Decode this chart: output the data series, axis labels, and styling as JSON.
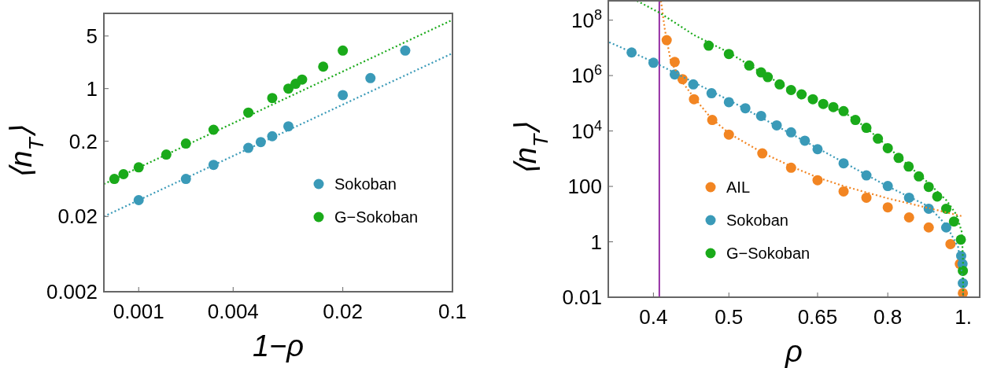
{
  "chart_data": [
    {
      "type": "scatter",
      "xlabel": "1−ρ",
      "ylabel": "⟨n$_{T}$⟩",
      "log": "xy",
      "xlim": [
        0.0006,
        0.1
      ],
      "ylim": [
        0.002,
        10
      ],
      "xticks": [
        0.001,
        0.004,
        0.02,
        0.1
      ],
      "yticks": [
        0.002,
        0.02,
        0.2,
        1,
        5
      ],
      "legend": "right",
      "series": [
        {
          "name": "Sokoban",
          "marker": "circle",
          "color": "#3a9ab8",
          "x": [
            0.001,
            0.002,
            0.003,
            0.005,
            0.006,
            0.0071,
            0.009,
            0.02,
            0.03,
            0.05
          ],
          "values": [
            0.033,
            0.063,
            0.097,
            0.163,
            0.195,
            0.233,
            0.315,
            0.82,
            1.38,
            3.2
          ]
        },
        {
          "name": "G−Sokoban",
          "marker": "circle",
          "color": "#1aaa1a",
          "x": [
            0.0007,
            0.0008,
            0.001,
            0.0015,
            0.002,
            0.003,
            0.005,
            0.0071,
            0.009,
            0.01,
            0.011,
            0.015,
            0.02
          ],
          "values": [
            0.063,
            0.073,
            0.09,
            0.133,
            0.186,
            0.284,
            0.48,
            0.75,
            1,
            1.16,
            1.32,
            1.96,
            3.2
          ]
        },
        {
          "type": "line",
          "line_style": "dotted",
          "color": "#3a9ab8",
          "x": [
            0.0006,
            0.1
          ],
          "values": [
            0.02,
            2.95
          ]
        },
        {
          "type": "line",
          "line_style": "dotted",
          "color": "#1aaa1a",
          "x": [
            0.0006,
            0.1
          ],
          "values": [
            0.054,
            8.2
          ]
        }
      ]
    },
    {
      "type": "scatter",
      "xlabel": "ρ",
      "ylabel": "⟨n$_{T}$⟩",
      "log": "xy",
      "xlim": [
        0.35,
        1.05
      ],
      "ylim": [
        0.01,
        500000000
      ],
      "xticks": [
        0.4,
        0.5,
        0.65,
        0.8,
        {
          "value": 1,
          "label": "1."
        }
      ],
      "yticks": [
        0.01,
        1,
        100,
        {
          "value": 10000,
          "label": "10$^{4}$"
        },
        {
          "value": 1000000,
          "label": "10$^{6}$"
        },
        {
          "value": 100000000,
          "label": "10$^{8}$"
        }
      ],
      "legend": "bottom",
      "ref_lines": [
        {
          "axis": "x",
          "value": 0.407,
          "color": "#8b1a9b"
        }
      ],
      "series": [
        {
          "name": "AIL",
          "marker": "circle",
          "color": "#f28522",
          "x": [
            0.416,
            0.426,
            0.436,
            0.451,
            0.476,
            0.5,
            0.552,
            0.601,
            0.65,
            0.702,
            0.751,
            0.8,
            0.852,
            0.903,
            0.963,
            0.99,
            0.999
          ],
          "values": [
            19000000,
            3100000,
            740000,
            140000,
            25000,
            7400,
            1550,
            470,
            167,
            66,
            39,
            17.6,
            7.6,
            3.3,
            0.83,
            0.16,
            0.014
          ]
        },
        {
          "name": "Sokoban",
          "marker": "circle",
          "color": "#3a9ab8",
          "x": [
            0.375,
            0.4,
            0.426,
            0.45,
            0.475,
            0.5,
            0.525,
            0.55,
            0.576,
            0.601,
            0.626,
            0.65,
            0.702,
            0.751,
            0.8,
            0.852,
            0.903,
            0.951,
            0.994,
            0.998,
            0.999
          ],
          "values": [
            6800000,
            2900000,
            1100000,
            480000,
            230000,
            110000,
            66000,
            35000,
            16000,
            8900,
            4450,
            2200,
            680,
            250,
            103,
            39,
            15.7,
            3.3,
            0.31,
            0.16,
            0.032
          ]
        },
        {
          "name": "G−Sokoban",
          "marker": "circle",
          "color": "#1aaa1a",
          "x": [
            0.471,
            0.5,
            0.531,
            0.55,
            0.561,
            0.581,
            0.601,
            0.62,
            0.641,
            0.661,
            0.681,
            0.702,
            0.727,
            0.751,
            0.777,
            0.8,
            0.826,
            0.851,
            0.877,
            0.903,
            0.926,
            0.951,
            0.973,
            0.993,
            0.999
          ],
          "values": [
            12000000,
            6000000,
            2300000,
            1300000,
            880000,
            480000,
            300000,
            210000,
            140000,
            95000,
            73000,
            52000,
            25000,
            13000,
            5300,
            2400,
            1070,
            520,
            230,
            96,
            43,
            15.7,
            5.4,
            1.2,
            0.09
          ]
        },
        {
          "type": "line",
          "line_style": "dotted",
          "color": "#f28522",
          "x": [
            0.409,
            0.4137,
            0.421,
            0.435,
            0.451,
            0.474,
            0.5,
            0.552,
            0.601,
            0.65,
            0.702,
            0.8,
            0.903,
            1.0
          ],
          "values": [
            500000000,
            47000000,
            3300000,
            620000,
            160000,
            30000,
            8300,
            1650,
            530,
            210,
            103,
            37,
            16.5,
            8.2
          ]
        },
        {
          "type": "line",
          "line_style": "dotted",
          "color": "#3a9ab8",
          "x": [
            0.351,
            0.4,
            0.5,
            0.65,
            0.8,
            0.903,
            0.951,
            0.985,
            0.998,
            0.9999
          ],
          "values": [
            16000000,
            3100000,
            130000,
            2400,
            100,
            19,
            4,
            0.65,
            0.058,
            0.01
          ]
        },
        {
          "type": "line",
          "line_style": "dotted",
          "color": "#1aaa1a",
          "x": [
            0.381,
            0.408,
            0.451,
            0.5,
            0.551,
            0.601,
            0.702,
            0.751,
            0.8,
            0.851,
            0.903,
            0.952,
            0.981,
            0.996,
            0.9995,
            0.9999
          ],
          "values": [
            500000000,
            180000000,
            29000000,
            6800000,
            1260000,
            300000,
            49000,
            13000,
            2700,
            560,
            130,
            31,
            9.2,
            2.2,
            0.19,
            0.01
          ]
        }
      ]
    }
  ]
}
